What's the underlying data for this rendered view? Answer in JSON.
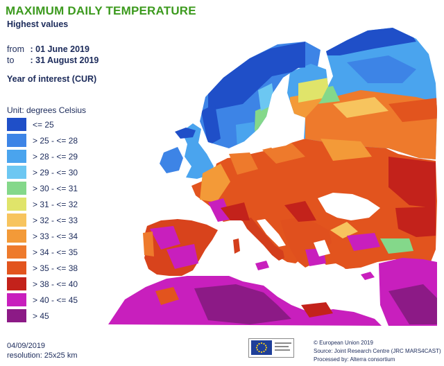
{
  "map": {
    "title": "MAXIMUM DAILY TEMPERATURE",
    "subtitle": "Highest values",
    "period": {
      "from_label": "from",
      "from_value": ": 01 June 2019",
      "to_label": "to",
      "to_value": ": 31 August 2019"
    },
    "year_of_interest": "Year of interest (CUR)",
    "legend": {
      "unit": "Unit: degrees Celsius",
      "classes": [
        {
          "label": "<= 25",
          "color": "#1f4fc8"
        },
        {
          "label": "> 25 - <= 28",
          "color": "#3d84e6"
        },
        {
          "label": "> 28 - <= 29",
          "color": "#4aa4ee"
        },
        {
          "label": "> 29 - <= 30",
          "color": "#6cc7f2"
        },
        {
          "label": "> 30 - <= 31",
          "color": "#84d88a"
        },
        {
          "label": "> 31 - <= 32",
          "color": "#e0e46a"
        },
        {
          "label": "> 32 - <= 33",
          "color": "#f7c45e"
        },
        {
          "label": "> 33 - <= 34",
          "color": "#f39a38"
        },
        {
          "label": "> 34 - <= 35",
          "color": "#ee7a2c"
        },
        {
          "label": "> 35 - <= 38",
          "color": "#e2541e"
        },
        {
          "label": "> 38 - <= 40",
          "color": "#c3221b"
        },
        {
          "label": "> 40 - <= 45",
          "color": "#c81fbd"
        },
        {
          "label": "> 45",
          "color": "#8c1a86"
        }
      ]
    },
    "footer": {
      "date": "04/09/2019",
      "resolution": "resolution: 25x25 km",
      "copyright": "© European Union 2019",
      "source": "Source: Joint Research Centre (JRC MARS4CAST)",
      "processed": "Processed by: Alterra consortium"
    },
    "colors": {
      "sea": "#ffffff",
      "title_green": "#3c9a1e",
      "text_navy": "#1b2a5a",
      "eu_blue": "#1f3f99",
      "eu_star": "#f7d018"
    }
  }
}
